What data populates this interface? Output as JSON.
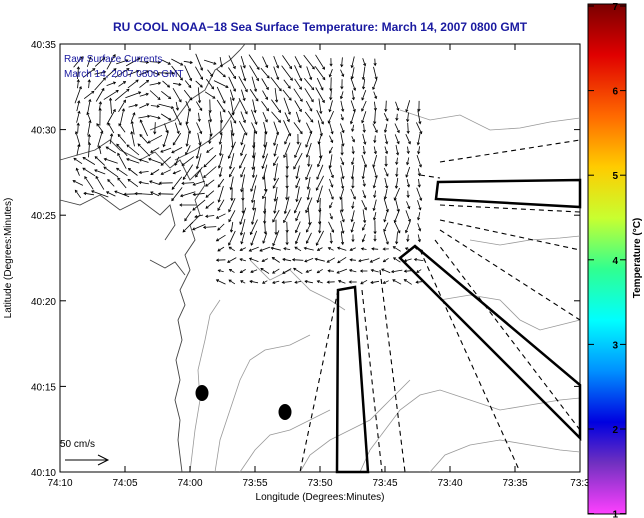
{
  "title": "RU COOL  NOAA−18  Sea Surface Temperature:  March 14, 2007 0800 GMT",
  "overlay": {
    "line1": "Raw Surface Currents",
    "line2": "March 14, 2007 0800 GMT"
  },
  "axes": {
    "xlabel": "Longitude (Degrees:Minutes)",
    "ylabel": "Latitude (Degrees:Minutes)",
    "xticks": [
      "74:10",
      "74:05",
      "74:00",
      "73:55",
      "73:50",
      "73:45",
      "73:40",
      "73:35",
      "73:3"
    ],
    "yticks": [
      "40:35",
      "40:30",
      "40:25",
      "40:20",
      "40:15",
      "40:10"
    ]
  },
  "colorbar": {
    "label": "Temperature (°C)",
    "ticks": [
      "7",
      "6",
      "5",
      "4",
      "3",
      "2",
      "1"
    ]
  },
  "scale": {
    "label": "50 cm/s"
  },
  "colors": {
    "title": "#1a1aa0",
    "arrows": "#000000"
  }
}
